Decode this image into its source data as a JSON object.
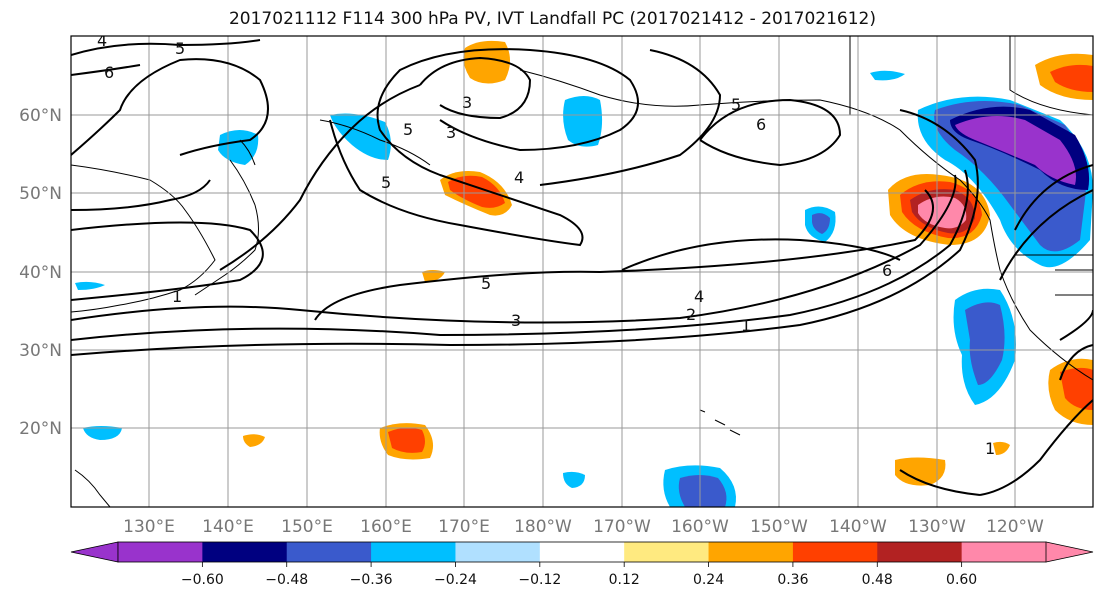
{
  "title": "2017021112 F114 300 hPa PV, IVT Landfall PC (2017021412 - 2017021612)",
  "map": {
    "lat_labels": [
      "60°N",
      "50°N",
      "40°N",
      "30°N",
      "20°N"
    ],
    "lon_labels": [
      "130°E",
      "140°E",
      "150°E",
      "160°E",
      "170°E",
      "180°W",
      "170°W",
      "160°W",
      "150°W",
      "140°W",
      "130°W",
      "120°W"
    ],
    "contour_labels": [
      "4",
      "5",
      "6",
      "3",
      "5",
      "5",
      "4",
      "5",
      "6",
      "3",
      "1",
      "5",
      "4",
      "2",
      "3",
      "1",
      "6",
      "1"
    ],
    "colors": {
      "fill_neg_3": "#9933cc",
      "fill_neg_2": "#000080",
      "fill_neg_1b": "#3a5acc",
      "fill_neg_1": "#00bfff",
      "fill_neg_0": "#b0e0ff",
      "fill_pos_0": "#ffea80",
      "fill_pos_1": "#ffa500",
      "fill_pos_1b": "#ff4000",
      "fill_pos_2": "#b22222",
      "fill_pos_3": "#ff88aa"
    }
  },
  "colorbar": {
    "ticks": [
      "−0.60",
      "−0.48",
      "−0.36",
      "−0.24",
      "−0.12",
      "0.12",
      "0.24",
      "0.36",
      "0.48",
      "0.60"
    ],
    "colors": [
      "#9933cc",
      "#000080",
      "#3a5acc",
      "#00bfff",
      "#b0e0ff",
      "#ffffff",
      "#ffea80",
      "#ffa500",
      "#ff4000",
      "#b22222",
      "#ff88aa"
    ]
  }
}
